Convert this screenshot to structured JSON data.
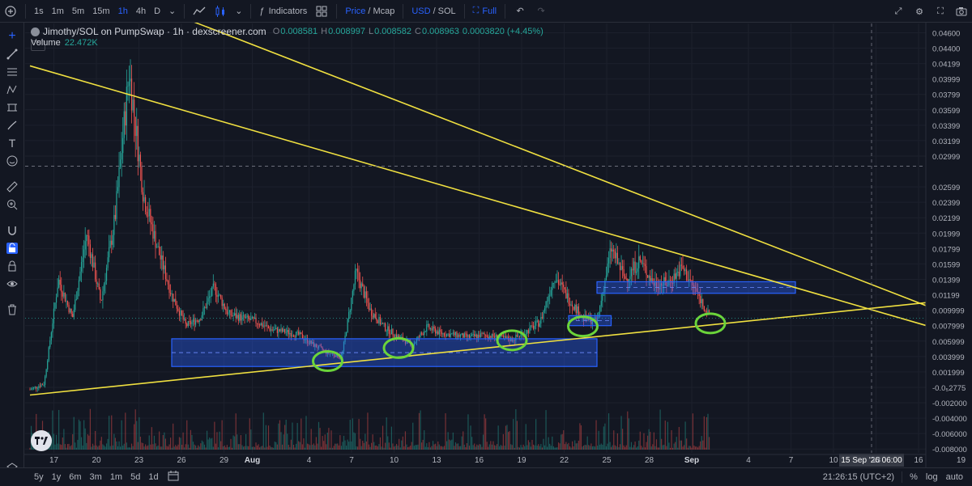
{
  "toolbar": {
    "intervals": [
      "1s",
      "1m",
      "5m",
      "15m",
      "1h",
      "4h",
      "D"
    ],
    "active_interval": "1h",
    "indicators_label": "Indicators",
    "price_label": "Price",
    "mcap_label": "Mcap",
    "usd_label": "USD",
    "sol_label": "SOL",
    "full_label": "Full",
    "slash": "/"
  },
  "legend": {
    "title": "Jimothy/SOL on PumpSwap · 1h · dexscreener.com",
    "o_label": "O",
    "o": "0.008581",
    "h_label": "H",
    "h": "0.008997",
    "l_label": "L",
    "l": "0.008582",
    "c_label": "C",
    "c": "0.008963",
    "change": "0.0003820 (+4.45%)",
    "volume_label": "Volume",
    "volume": "22.472K"
  },
  "bottombar": {
    "ranges": [
      "5y",
      "1y",
      "6m",
      "3m",
      "1m",
      "5d",
      "1d"
    ],
    "time": "21:26:15 (UTC+2)",
    "percent": "%",
    "log": "log",
    "auto": "auto"
  },
  "chart_data": {
    "type": "candlestick",
    "title": "Jimothy/SOL on PumpSwap · 1h · dexscreener.com",
    "y_ticks": [
      "0.04600",
      "0.04400",
      "0.04199",
      "0.03999",
      "0.03799",
      "0.03599",
      "0.03399",
      "0.03199",
      "0.02999",
      "0.02599",
      "0.02399",
      "0.02199",
      "0.01999",
      "0.01799",
      "0.01599",
      "0.01399",
      "0.01199",
      "0.009999",
      "0.007999",
      "0.005999",
      "0.003999",
      "0.001999",
      "-0.0₅2775",
      "-0.002000",
      "-0.004000",
      "-0.006000",
      "-0.008000"
    ],
    "ylim": [
      -0.0085,
      0.0472
    ],
    "x_ticks": [
      "17",
      "20",
      "23",
      "26",
      "29",
      "Aug",
      "4",
      "7",
      "10",
      "13",
      "16",
      "19",
      "22",
      "25",
      "28",
      "Sep",
      "4",
      "7",
      "10",
      "13",
      "16",
      "19"
    ],
    "crosshair": {
      "price": "0.02868",
      "time": "15 Sep '26  06:00"
    },
    "last_price": "0.008963",
    "price_path": [
      {
        "x": "Jul 16",
        "y": -0.0003
      },
      {
        "x": "Jul 17",
        "y": 0.0005
      },
      {
        "x": "Jul 18",
        "y": 0.014
      },
      {
        "x": "Jul 19",
        "y": 0.009
      },
      {
        "x": "Jul 20",
        "y": 0.02
      },
      {
        "x": "Jul 21",
        "y": 0.011
      },
      {
        "x": "Jul 22",
        "y": 0.022
      },
      {
        "x": "Jul 23",
        "y": 0.041
      },
      {
        "x": "Jul 24",
        "y": 0.025
      },
      {
        "x": "Jul 25",
        "y": 0.018
      },
      {
        "x": "Jul 26",
        "y": 0.012
      },
      {
        "x": "Jul 27",
        "y": 0.008
      },
      {
        "x": "Jul 28",
        "y": 0.009
      },
      {
        "x": "Jul 29",
        "y": 0.013
      },
      {
        "x": "Jul 30",
        "y": 0.0095
      },
      {
        "x": "Jul 31",
        "y": 0.009
      },
      {
        "x": "Aug 1",
        "y": 0.0085
      },
      {
        "x": "Aug 2",
        "y": 0.0075
      },
      {
        "x": "Aug 3",
        "y": 0.0072
      },
      {
        "x": "Aug 4",
        "y": 0.0068
      },
      {
        "x": "Aug 5",
        "y": 0.0055
      },
      {
        "x": "Aug 6",
        "y": 0.0045
      },
      {
        "x": "Aug 7",
        "y": 0.004
      },
      {
        "x": "Aug 8",
        "y": 0.015
      },
      {
        "x": "Aug 9",
        "y": 0.01
      },
      {
        "x": "Aug 10",
        "y": 0.0078
      },
      {
        "x": "Aug 11",
        "y": 0.0065
      },
      {
        "x": "Aug 12",
        "y": 0.0055
      },
      {
        "x": "Aug 13",
        "y": 0.0078
      },
      {
        "x": "Aug 14",
        "y": 0.007
      },
      {
        "x": "Aug 15",
        "y": 0.0068
      },
      {
        "x": "Aug 16",
        "y": 0.0065
      },
      {
        "x": "Aug 17",
        "y": 0.0068
      },
      {
        "x": "Aug 18",
        "y": 0.0065
      },
      {
        "x": "Aug 19",
        "y": 0.0062
      },
      {
        "x": "Aug 20",
        "y": 0.0072
      },
      {
        "x": "Aug 21",
        "y": 0.0085
      },
      {
        "x": "Aug 22",
        "y": 0.0145
      },
      {
        "x": "Aug 23",
        "y": 0.0115
      },
      {
        "x": "Aug 24",
        "y": 0.009
      },
      {
        "x": "Aug 25",
        "y": 0.0085
      },
      {
        "x": "Aug 26",
        "y": 0.018
      },
      {
        "x": "Aug 27",
        "y": 0.014
      },
      {
        "x": "Aug 28",
        "y": 0.0165
      },
      {
        "x": "Aug 29",
        "y": 0.0135
      },
      {
        "x": "Aug 30",
        "y": 0.0135
      },
      {
        "x": "Aug 31",
        "y": 0.0155
      },
      {
        "x": "Sep 1",
        "y": 0.0125
      },
      {
        "x": "Sep 2",
        "y": 0.00896
      }
    ],
    "trendlines": [
      {
        "from": {
          "x": "Jul 16",
          "y": 0.0417
        },
        "to": {
          "x": "Sep 21",
          "y": 0.006
        }
      },
      {
        "from": {
          "x": "Jul 19",
          "y": 0.0535
        },
        "to": {
          "x": "Sep 21",
          "y": 0.0079
        }
      },
      {
        "from": {
          "x": "Jul 16",
          "y": -0.001
        },
        "to": {
          "x": "Sep 21",
          "y": 0.0117
        }
      }
    ],
    "zones": [
      {
        "from": {
          "x": "Jul 26",
          "y": 0.0063
        },
        "to": {
          "x": "Aug 25",
          "y": 0.0027
        }
      },
      {
        "from": {
          "x": "Aug 23",
          "y": 0.0093
        },
        "to": {
          "x": "Aug 26",
          "y": 0.008
        }
      },
      {
        "from": {
          "x": "Aug 25",
          "y": 0.0137
        },
        "to": {
          "x": "Sep 8",
          "y": 0.0122
        }
      }
    ],
    "circles": [
      {
        "x": "Aug 6",
        "y": 0.0034
      },
      {
        "x": "Aug 11",
        "y": 0.0051
      },
      {
        "x": "Aug 19",
        "y": 0.0061
      },
      {
        "x": "Aug 24",
        "y": 0.0079
      },
      {
        "x": "Sep 2",
        "y": 0.0083
      }
    ]
  }
}
